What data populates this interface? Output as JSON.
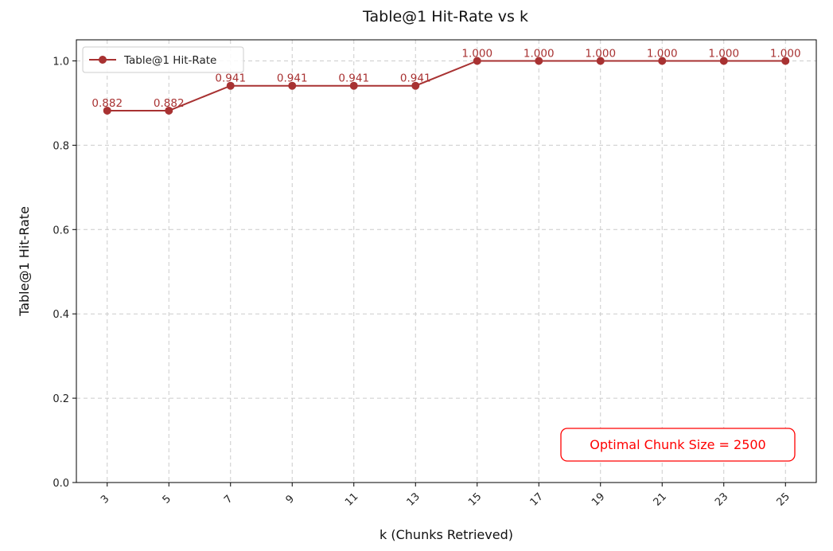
{
  "chart_data": {
    "type": "line",
    "title": "Table@1 Hit-Rate vs k",
    "xlabel": "k (Chunks Retrieved)",
    "ylabel": "Table@1 Hit-Rate",
    "x": [
      3,
      5,
      7,
      9,
      11,
      13,
      15,
      17,
      19,
      21,
      23,
      25
    ],
    "xticks": [
      "3",
      "5",
      "7",
      "9",
      "11",
      "13",
      "15",
      "17",
      "19",
      "21",
      "23",
      "25"
    ],
    "yticks": [
      "0.0",
      "0.2",
      "0.4",
      "0.6",
      "0.8",
      "1.0"
    ],
    "ylim": [
      0,
      1.05
    ],
    "grid": true,
    "legend_position": "top-left",
    "series": [
      {
        "name": "Table@1 Hit-Rate",
        "values": [
          0.882,
          0.882,
          0.941,
          0.941,
          0.941,
          0.941,
          1.0,
          1.0,
          1.0,
          1.0,
          1.0,
          1.0
        ],
        "labels": [
          "0.882",
          "0.882",
          "0.941",
          "0.941",
          "0.941",
          "0.941",
          "1.000",
          "1.000",
          "1.000",
          "1.000",
          "1.000",
          "1.000"
        ],
        "color": "#a83232"
      }
    ],
    "annotation": {
      "text": "Optimal Chunk Size = 2500",
      "color": "#ff0000",
      "position": "bottom-right"
    }
  }
}
